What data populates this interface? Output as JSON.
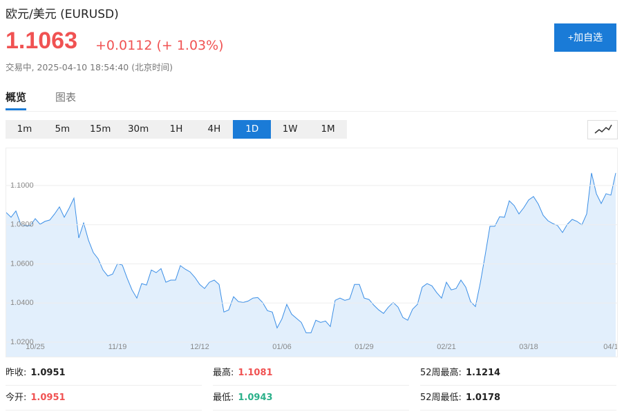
{
  "header": {
    "title": "欧元/美元 (EURUSD)",
    "price": 1.1063,
    "change": "+0.0112",
    "change_pct": "(+ 1.03%)",
    "status": "交易中,",
    "time": "2025-04-10 18:54:40",
    "timezone": "(北京时间)",
    "button": "+加自选"
  },
  "tabs": [
    {
      "label": "概览",
      "active": true
    },
    {
      "label": "图表"
    }
  ],
  "periods": [
    {
      "label": "1m"
    },
    {
      "label": "5m"
    },
    {
      "label": "15m"
    },
    {
      "label": "30m"
    },
    {
      "label": "1H"
    },
    {
      "label": "4H"
    },
    {
      "label": "1D",
      "active": true
    },
    {
      "label": "1W"
    },
    {
      "label": "1M"
    }
  ],
  "chart_data": {
    "type": "area",
    "color": "#3a8ee6",
    "fill": "#e2effc",
    "grid": true,
    "ylim": [
      1.0126,
      1.119
    ],
    "yticks": [
      {
        "value": 1.02,
        "label": "1.0200"
      },
      {
        "value": 1.04,
        "label": "1.0400"
      },
      {
        "value": 1.06,
        "label": "1.0600"
      },
      {
        "value": 1.08,
        "label": "1.0800"
      },
      {
        "value": 1.1,
        "label": "1.1000"
      }
    ],
    "categories": [
      null,
      null,
      null,
      null,
      null,
      null,
      "10/25",
      null,
      null,
      null,
      null,
      null,
      null,
      null,
      null,
      null,
      null,
      null,
      null,
      null,
      null,
      null,
      null,
      "11/19",
      null,
      null,
      null,
      null,
      null,
      null,
      null,
      null,
      null,
      null,
      null,
      null,
      null,
      null,
      null,
      null,
      "12/12",
      null,
      null,
      null,
      null,
      null,
      null,
      null,
      null,
      null,
      null,
      null,
      null,
      null,
      null,
      null,
      null,
      "01/06",
      null,
      null,
      null,
      null,
      null,
      null,
      null,
      null,
      null,
      null,
      null,
      null,
      null,
      null,
      null,
      null,
      "01/29",
      null,
      null,
      null,
      null,
      null,
      null,
      null,
      null,
      null,
      null,
      null,
      null,
      null,
      null,
      null,
      null,
      "02/21",
      null,
      null,
      null,
      null,
      null,
      null,
      null,
      null,
      null,
      null,
      null,
      null,
      null,
      null,
      null,
      null,
      "03/18",
      null,
      null,
      null,
      null,
      null,
      null,
      null,
      null,
      null,
      null,
      null,
      null,
      null,
      null,
      null,
      null,
      "04/1",
      null
    ],
    "values": [
      1.0862,
      1.0838,
      1.087,
      1.0802,
      1.0795,
      1.0795,
      1.0831,
      1.0802,
      1.0817,
      1.0824,
      1.0855,
      1.0891,
      1.0838,
      1.0884,
      1.0936,
      1.0732,
      1.0809,
      1.0721,
      1.0658,
      1.0626,
      1.0569,
      1.0538,
      1.0548,
      1.0601,
      1.0594,
      1.0527,
      1.0467,
      1.0425,
      1.0499,
      1.0492,
      1.0569,
      1.0555,
      1.0576,
      1.0506,
      1.0517,
      1.0517,
      1.0591,
      1.0573,
      1.0559,
      1.0531,
      1.0495,
      1.0474,
      1.0506,
      1.0517,
      1.0495,
      1.0354,
      1.0365,
      1.0432,
      1.0407,
      1.0403,
      1.041,
      1.0425,
      1.0428,
      1.0403,
      1.0361,
      1.0354,
      1.0273,
      1.0319,
      1.0393,
      1.0343,
      1.0322,
      1.0301,
      1.0248,
      1.0248,
      1.0312,
      1.0301,
      1.0308,
      1.028,
      1.0414,
      1.0425,
      1.0414,
      1.0421,
      1.0495,
      1.0495,
      1.0425,
      1.0418,
      1.0389,
      1.0365,
      1.0347,
      1.0379,
      1.0403,
      1.0379,
      1.0326,
      1.0312,
      1.0368,
      1.0393,
      1.0481,
      1.0499,
      1.0488,
      1.0453,
      1.0425,
      1.0506,
      1.0467,
      1.0474,
      1.0517,
      1.0481,
      1.0407,
      1.0382,
      1.0502,
      1.0643,
      1.0792,
      1.0792,
      1.0841,
      1.0838,
      1.0922,
      1.0898,
      1.0855,
      1.0887,
      1.0926,
      1.0944,
      1.0905,
      1.0848,
      1.082,
      1.0806,
      1.0795,
      1.076,
      1.0802,
      1.0827,
      1.0817,
      1.0799,
      1.0855,
      1.1064,
      1.0958,
      1.0908,
      1.0958,
      1.0951,
      1.1064
    ]
  },
  "stats": [
    {
      "label": "昨收:",
      "value": 1.0951
    },
    {
      "label": "最高:",
      "value": 1.1081,
      "color": "#f05252"
    },
    {
      "label": "52周最高:",
      "value": 1.1214
    },
    {
      "label": "今开:",
      "value": 1.0951,
      "color": "#f05252"
    },
    {
      "label": "最低:",
      "value": 1.0943,
      "color": "#2bb08a"
    },
    {
      "label": "52周最低:",
      "value": 1.0178
    }
  ]
}
